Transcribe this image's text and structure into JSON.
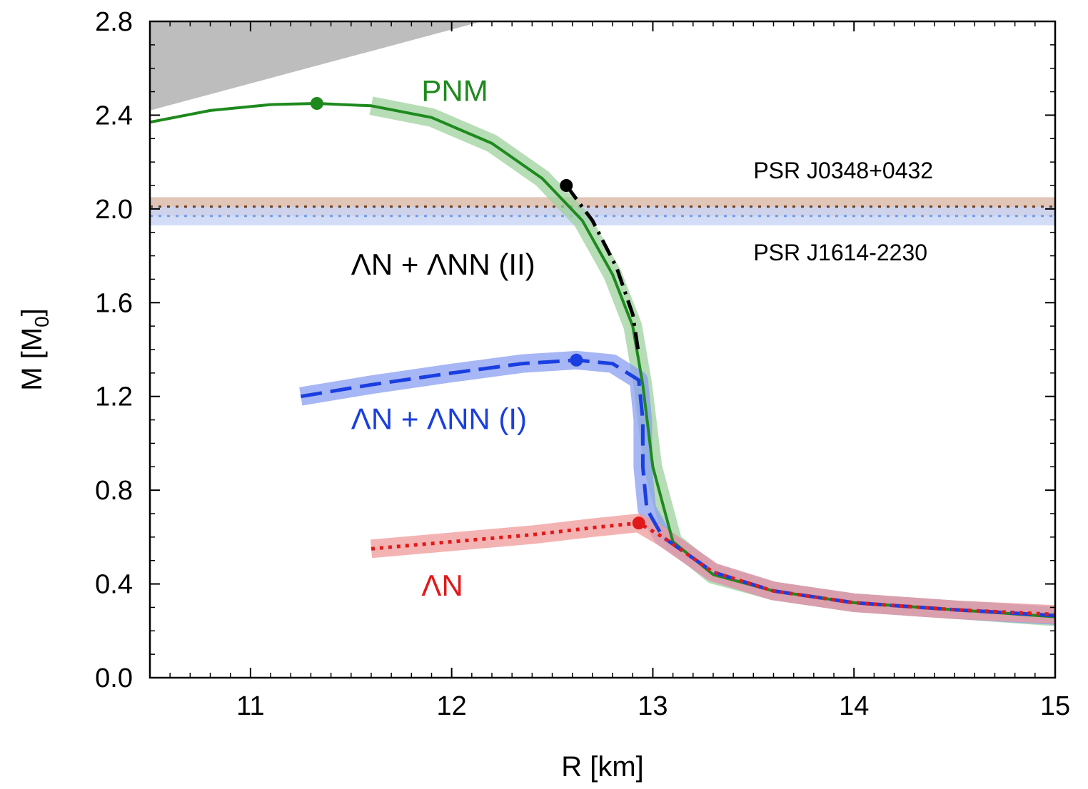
{
  "chart_data": {
    "type": "line",
    "title": "",
    "xlabel": "R [km]",
    "ylabel": "M [M0]",
    "ylabel_main": "M [M",
    "ylabel_sub": "0",
    "ylabel_end": "]",
    "xlim": [
      10.5,
      15
    ],
    "ylim": [
      0.0,
      2.8
    ],
    "x_ticks": [
      11,
      12,
      13,
      14,
      15
    ],
    "x_tick_labels": [
      "11",
      "12",
      "13",
      "14",
      "15"
    ],
    "y_ticks": [
      0.0,
      0.4,
      0.8,
      1.2,
      1.6,
      2.0,
      2.4,
      2.8
    ],
    "y_tick_labels": [
      "0.0",
      "0.4",
      "0.8",
      "1.2",
      "1.6",
      "2.0",
      "2.4",
      "2.8"
    ],
    "grid": false,
    "excluded_region": {
      "color": "#bdbdbd",
      "boundary": [
        [
          10.5,
          2.42
        ],
        [
          12.15,
          2.8
        ]
      ]
    },
    "bands": [
      {
        "name": "PSR J0348+0432",
        "center": 2.01,
        "lower": 1.97,
        "upper": 2.05,
        "band_color": "#d9b8a6",
        "line_color": "#6b3d1c",
        "style": "dotted"
      },
      {
        "name": "PSR J1614-2230",
        "center": 1.97,
        "lower": 1.93,
        "upper": 2.01,
        "band_color": "#c9d4f6",
        "line_color": "#6e9ee8",
        "style": "dotted"
      }
    ],
    "series": [
      {
        "name": "PNM",
        "color": "#1e8a1e",
        "band_color": "#9ed29e",
        "style": "solid",
        "x": [
          10.5,
          10.8,
          11.1,
          11.33,
          11.6,
          11.9,
          12.2,
          12.45,
          12.65,
          12.8,
          12.9,
          12.95,
          13.0,
          13.1,
          13.3,
          13.6,
          14.0,
          14.5,
          15.0
        ],
        "y": [
          2.37,
          2.42,
          2.445,
          2.45,
          2.44,
          2.39,
          2.28,
          2.13,
          1.95,
          1.72,
          1.5,
          1.25,
          0.9,
          0.58,
          0.44,
          0.37,
          0.32,
          0.29,
          0.26
        ],
        "band_x_start": 11.5,
        "band_y_start": 1.36,
        "max_point": [
          11.33,
          2.45
        ]
      },
      {
        "name": "ΛN + ΛNN (II)",
        "color": "#000000",
        "style": "dash-dot",
        "x": [
          12.57,
          12.7,
          12.82,
          12.9,
          12.93
        ],
        "y": [
          2.1,
          1.95,
          1.75,
          1.55,
          1.38
        ],
        "max_point": [
          12.57,
          2.1
        ]
      },
      {
        "name": "ΛN + ΛNN (I)",
        "color": "#1a3fe0",
        "band_color": "#8a9df0",
        "style": "dashed",
        "x": [
          11.25,
          11.6,
          12.0,
          12.35,
          12.62,
          12.8,
          12.93,
          12.95,
          12.95,
          12.97,
          13.05,
          13.3,
          13.6,
          14.0,
          14.5,
          15.0
        ],
        "y": [
          1.2,
          1.25,
          1.3,
          1.34,
          1.355,
          1.34,
          1.27,
          1.1,
          0.9,
          0.72,
          0.6,
          0.45,
          0.37,
          0.32,
          0.29,
          0.265
        ],
        "max_point": [
          12.62,
          1.355
        ]
      },
      {
        "name": "ΛN",
        "color": "#e01a1a",
        "band_color": "#f09a9a",
        "style": "dotted",
        "x": [
          11.6,
          12.0,
          12.4,
          12.7,
          12.93,
          13.05,
          13.3,
          13.6,
          14.0,
          14.5,
          15.0
        ],
        "y": [
          0.55,
          0.58,
          0.61,
          0.64,
          0.66,
          0.6,
          0.45,
          0.37,
          0.32,
          0.29,
          0.27
        ],
        "max_point": [
          12.93,
          0.66
        ]
      }
    ],
    "annotations": [
      {
        "text": "PNM",
        "color": "#1e8a1e",
        "x": 11.85,
        "y": 2.46
      },
      {
        "text": "ΛN + ΛNN (II)",
        "color": "#000000",
        "x": 11.5,
        "y": 1.72
      },
      {
        "text": "ΛN + ΛNN (I)",
        "color": "#1a3fe0",
        "x": 11.5,
        "y": 1.06
      },
      {
        "text": "ΛN",
        "color": "#e01a1a",
        "x": 11.85,
        "y": 0.35
      },
      {
        "text": "PSR J0348+0432",
        "color": "#000000",
        "x": 13.5,
        "y": 2.13
      },
      {
        "text": "PSR J1614-2230",
        "color": "#000000",
        "x": 13.5,
        "y": 1.78
      }
    ]
  }
}
